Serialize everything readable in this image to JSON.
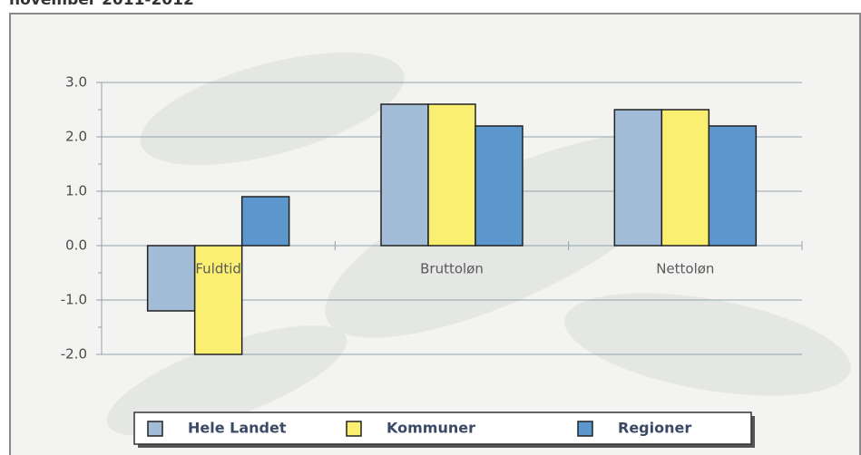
{
  "chart_data": {
    "type": "bar",
    "title": "november 2011-2012",
    "categories": [
      "Fuldtid",
      "Bruttoløn",
      "Nettoløn"
    ],
    "series": [
      {
        "name": "Hele Landet",
        "color": "#a3bcd8",
        "values": [
          -1.2,
          2.6,
          2.5
        ]
      },
      {
        "name": "Kommuner",
        "color": "#fbef72",
        "values": [
          -2.0,
          2.6,
          2.5
        ]
      },
      {
        "name": "Regioner",
        "color": "#5b96cc",
        "values": [
          0.9,
          2.2,
          2.2
        ]
      }
    ],
    "ylim": [
      -2,
      3
    ],
    "yticks": [
      {
        "value": -2,
        "label": "-2.0"
      },
      {
        "value": -1,
        "label": "-1.0"
      },
      {
        "value": 0,
        "label": "0.0"
      },
      {
        "value": 1,
        "label": "1.0"
      },
      {
        "value": 2,
        "label": "2.0"
      },
      {
        "value": 3,
        "label": "3.0"
      }
    ],
    "grid": true,
    "legend": "bottom"
  }
}
